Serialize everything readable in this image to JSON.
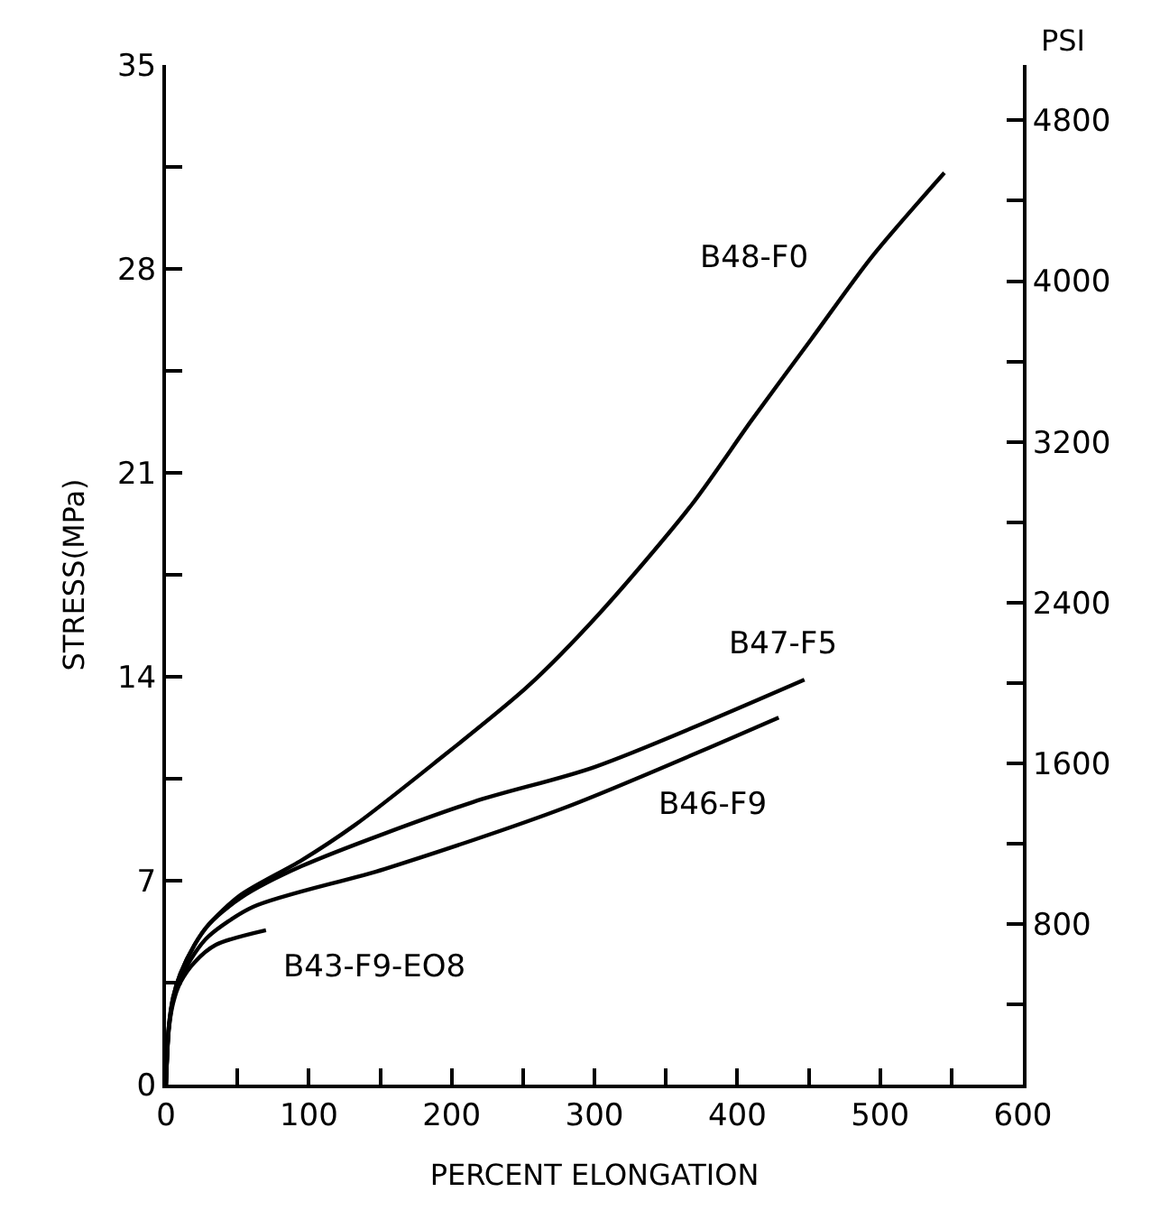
{
  "chart_data": {
    "type": "line",
    "xlabel": "PERCENT ELONGATION",
    "ylabel": "STRESS(MPa)",
    "y2label": "PSI",
    "xlim": [
      0,
      600
    ],
    "ylim": [
      0,
      35
    ],
    "y2lim": [
      0,
      5076
    ],
    "xticks": [
      0,
      {
        "value": 50,
        "label": null
      },
      100,
      {
        "value": 150,
        "label": null
      },
      200,
      {
        "value": 250,
        "label": null
      },
      300,
      {
        "value": 350,
        "label": null
      },
      400,
      {
        "value": 450,
        "label": null
      },
      500,
      {
        "value": 550,
        "label": null
      },
      600
    ],
    "yticks": [
      0,
      {
        "value": 3.5,
        "label": null
      },
      7,
      {
        "value": 10.5,
        "label": null
      },
      14,
      {
        "value": 17.5,
        "label": null
      },
      21,
      {
        "value": 24.5,
        "label": null
      },
      28,
      {
        "value": 31.5,
        "label": null
      },
      35
    ],
    "y2ticks": [
      {
        "value": 400,
        "label": null
      },
      800,
      {
        "value": 1200,
        "label": null
      },
      1600,
      {
        "value": 2000,
        "label": null
      },
      2400,
      {
        "value": 2800,
        "label": null
      },
      3200,
      {
        "value": 3600,
        "label": null
      },
      4000,
      {
        "value": 4400,
        "label": null
      },
      4800
    ],
    "legend": false,
    "marker": "none",
    "line_style": "solid",
    "series": [
      {
        "name": "B48-F0",
        "color": "#000000",
        "x": [
          0,
          2,
          5,
          10,
          20,
          30,
          52,
          95,
          132,
          187,
          254,
          304,
          368,
          410,
          452,
          494,
          545
        ],
        "values": [
          0,
          2,
          3,
          3.8,
          4.8,
          5.5,
          6.5,
          7.7,
          8.9,
          11.0,
          13.7,
          16.2,
          19.9,
          22.8,
          25.6,
          28.4,
          31.3
        ]
      },
      {
        "name": "B47-F5",
        "color": "#000000",
        "x": [
          0,
          2,
          5,
          10,
          20,
          30,
          52,
          95,
          215,
          300,
          447
        ],
        "values": [
          0,
          2,
          3,
          3.8,
          4.8,
          5.5,
          6.4,
          7.5,
          9.7,
          10.9,
          13.9
        ]
      },
      {
        "name": "B46-F9",
        "color": "#000000",
        "x": [
          0,
          2,
          5,
          10,
          20,
          30,
          61,
          153,
          279,
          429
        ],
        "values": [
          0,
          1.9,
          2.9,
          3.6,
          4.5,
          5.1,
          6.1,
          7.4,
          9.5,
          12.6
        ]
      },
      {
        "name": "B43-F9-EO8",
        "color": "#000000",
        "x": [
          0,
          2,
          5,
          10,
          20,
          35,
          70
        ],
        "values": [
          0,
          1.9,
          2.8,
          3.5,
          4.2,
          4.8,
          5.3
        ]
      }
    ]
  }
}
